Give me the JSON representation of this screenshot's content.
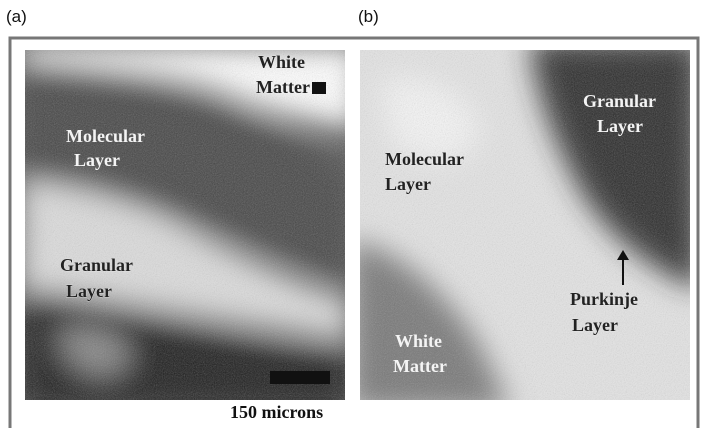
{
  "panels": [
    {
      "label": "(a)",
      "annotations": [
        {
          "lines": [
            "White",
            "Matter"
          ]
        },
        {
          "lines": [
            "Molecular",
            "Layer"
          ]
        },
        {
          "lines": [
            "Granular",
            "Layer"
          ]
        }
      ],
      "scale_bar_label": "150 microns"
    },
    {
      "label": "(b)",
      "annotations": [
        {
          "lines": [
            "Granular",
            "Layer"
          ]
        },
        {
          "lines": [
            "Molecular",
            "Layer"
          ]
        },
        {
          "lines": [
            "Purkinje",
            "Layer"
          ]
        },
        {
          "lines": [
            "White",
            "Matter"
          ]
        }
      ]
    }
  ]
}
